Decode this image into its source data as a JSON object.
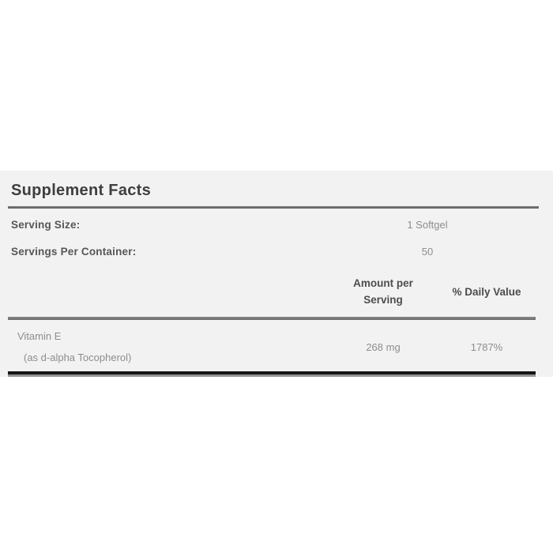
{
  "supplement_label": {
    "title": "Supplement Facts",
    "serving_size_label": "Serving Size:",
    "serving_size_value": "1 Softgel",
    "servings_per_container_label": "Servings Per Container:",
    "servings_per_container_value": "50",
    "column_headers": {
      "amount": "Amount per Serving",
      "daily_value": "% Daily Value"
    },
    "nutrients": [
      {
        "name": "Vitamin E",
        "detail": "(as d-alpha Tocopherol)",
        "amount": "268 mg",
        "daily_value": "1787%"
      }
    ],
    "colors": {
      "panel_background": "#f2f2f2",
      "title_text": "#3e3e3e",
      "label_text": "#565656",
      "header_text": "#4d4d4d",
      "value_text": "#8d8d8d",
      "rule_gray": "#6a6a6a",
      "rule_black": "#161616"
    }
  }
}
